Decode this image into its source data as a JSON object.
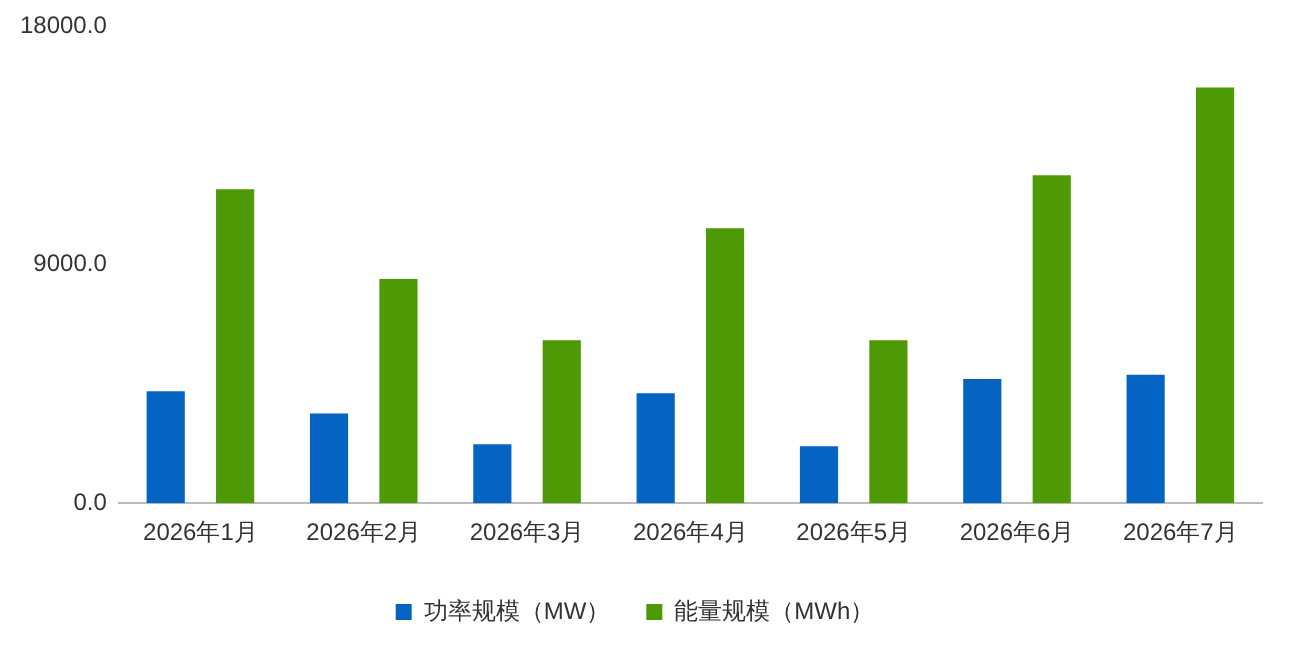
{
  "chart_data": {
    "type": "bar",
    "categories": [
      "2026年1月",
      "2026年2月",
      "2026年3月",
      "2026年4月",
      "2026年5月",
      "2026年6月",
      "2026年7月"
    ],
    "series": [
      {
        "name": "功率规模（MW）",
        "color": "#0563c1",
        "values": [
          4230,
          3390,
          2230,
          4150,
          2150,
          4690,
          4850
        ]
      },
      {
        "name": "能量规模（MWh）",
        "color": "#4e9a06",
        "values": [
          11850,
          8460,
          6150,
          10380,
          6150,
          12380,
          15690
        ]
      }
    ],
    "ylim": [
      0,
      18000
    ],
    "yticks": [
      {
        "value": 0,
        "label": "0.0"
      },
      {
        "value": 9000,
        "label": "9000.0"
      },
      {
        "value": 18000,
        "label": "18000.0"
      }
    ],
    "grid": false,
    "legend": "bottom"
  }
}
